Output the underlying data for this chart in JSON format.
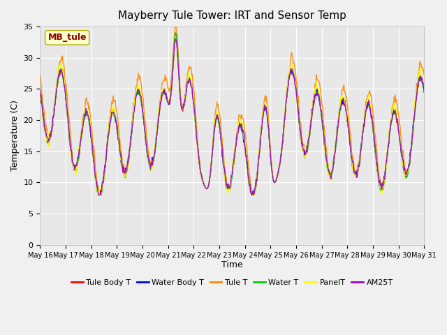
{
  "title": "Mayberry Tule Tower: IRT and Sensor Temp",
  "xlabel": "Time",
  "ylabel": "Temperature (C)",
  "ylim": [
    0,
    35
  ],
  "yticks": [
    0,
    5,
    10,
    15,
    20,
    25,
    30,
    35
  ],
  "legend_label": "MB_tule",
  "legend_entries": [
    "Tule Body T",
    "Water Body T",
    "Tule T",
    "Water T",
    "PanelT",
    "AM25T"
  ],
  "legend_colors": [
    "#ff0000",
    "#0000ff",
    "#ff8800",
    "#00cc00",
    "#ffff00",
    "#9900cc"
  ],
  "plot_bg_color": "#e8e8e8",
  "fig_bg_color": "#f0f0f0",
  "x_tick_positions": [
    0,
    1,
    2,
    3,
    4,
    5,
    6,
    7,
    8,
    9,
    10,
    11,
    12,
    13,
    14,
    15
  ],
  "x_tick_labels": [
    "May 16",
    "May 17",
    "May 18",
    "May 19",
    "May 20",
    "May 21",
    "May 22",
    "May 23",
    "May 24",
    "May 25",
    "May 26",
    "May 27",
    "May 28",
    "May 29",
    "May 30",
    "May 31"
  ],
  "xlim": [
    0,
    15
  ],
  "seed": 42
}
